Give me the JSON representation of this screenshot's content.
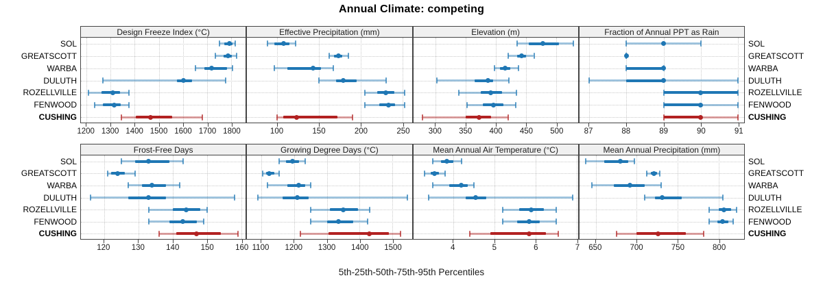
{
  "title": "Annual Climate: competing",
  "axis_caption": "5th-25th-50th-75th-95th Percentiles",
  "locations": [
    "SOL",
    "GREATSCOTT",
    "WARBA",
    "DULUTH",
    "ROZELLVILLE",
    "FENWOOD",
    "CUSHING"
  ],
  "highlight_location": "CUSHING",
  "percentile_labels": [
    "5th",
    "25th",
    "50th",
    "75th",
    "95th"
  ],
  "colors": {
    "series_main": "#1f77b4",
    "highlight_main": "#b22222",
    "grid": "#c9c9c9",
    "header_bg": "#f0f0f0",
    "panel_border": "#444444",
    "title_color": "#000000"
  },
  "layout": {
    "rows": 2,
    "cols": 4,
    "legend": "none",
    "grid": "dotted",
    "left_labels": true,
    "right_labels": true
  },
  "chart_data": {
    "type": "dot-interval (percentile summary, horizontal)",
    "title": "Annual Climate: competing",
    "xlabel": "5th-25th-50th-75th-95th Percentiles",
    "categories": [
      "SOL",
      "GREATSCOTT",
      "WARBA",
      "DULUTH",
      "ROZELLVILLE",
      "FENWOOD",
      "CUSHING"
    ],
    "percentiles": [
      5,
      25,
      50,
      75,
      95
    ],
    "panels": [
      {
        "row": 0,
        "col": 0,
        "title": "Design Freeze Index (°C)",
        "xlim": [
          1177,
          1860
        ],
        "ticks": [
          1200,
          1300,
          1400,
          1500,
          1600,
          1700,
          1800
        ],
        "values": [
          [
            1750,
            1772,
            1793,
            1806,
            1818
          ],
          [
            1733,
            1768,
            1787,
            1802,
            1823
          ],
          [
            1652,
            1688,
            1718,
            1783,
            1806
          ],
          [
            1268,
            1575,
            1603,
            1637,
            1778
          ],
          [
            1208,
            1262,
            1310,
            1340,
            1375
          ],
          [
            1235,
            1268,
            1315,
            1342,
            1375
          ],
          [
            1345,
            1405,
            1465,
            1555,
            1680
          ]
        ]
      },
      {
        "row": 0,
        "col": 1,
        "title": "Effective Precipitation (mm)",
        "xlim": [
          64,
          261
        ],
        "ticks": [
          100,
          150,
          200,
          250
        ],
        "values": [
          [
            88,
            97,
            108,
            115,
            122
          ],
          [
            162,
            168,
            173,
            178,
            185
          ],
          [
            97,
            112,
            143,
            152,
            167
          ],
          [
            150,
            170,
            179,
            195,
            230
          ],
          [
            205,
            220,
            230,
            240,
            252
          ],
          [
            205,
            222,
            233,
            241,
            252
          ],
          [
            100,
            107,
            123,
            172,
            190
          ]
        ]
      },
      {
        "row": 0,
        "col": 2,
        "title": "Elevation (m)",
        "xlim": [
          263,
          536
        ],
        "ticks": [
          300,
          350,
          400,
          450,
          500
        ],
        "values": [
          [
            435,
            455,
            478,
            505,
            528
          ],
          [
            420,
            435,
            443,
            450,
            463
          ],
          [
            398,
            407,
            415,
            424,
            437
          ],
          [
            302,
            365,
            387,
            395,
            421
          ],
          [
            338,
            375,
            391,
            410,
            434
          ],
          [
            352,
            378,
            396,
            412,
            433
          ],
          [
            278,
            350,
            372,
            392,
            420
          ]
        ]
      },
      {
        "row": 0,
        "col": 3,
        "title": "Fraction of Annual PPT as Rain",
        "xlim": [
          86.74,
          91.16
        ],
        "ticks": [
          87,
          88,
          89,
          90,
          91
        ],
        "values": [
          [
            88,
            89,
            89,
            89,
            90
          ],
          [
            88,
            88,
            88,
            88,
            88
          ],
          [
            88,
            88,
            89,
            89,
            89
          ],
          [
            87,
            88,
            89,
            89,
            91
          ],
          [
            89,
            89,
            90,
            91,
            91
          ],
          [
            89,
            89,
            90,
            90,
            91
          ],
          [
            89,
            89,
            90,
            90,
            91
          ]
        ]
      },
      {
        "row": 1,
        "col": 0,
        "title": "Frost-Free Days",
        "xlim": [
          113.3,
          161.3
        ],
        "ticks": [
          120,
          130,
          140,
          150,
          160
        ],
        "values": [
          [
            125,
            129,
            133,
            139,
            143
          ],
          [
            121,
            122,
            124,
            126,
            129
          ],
          [
            127,
            131,
            134,
            138,
            142
          ],
          [
            116,
            127,
            133,
            138,
            158
          ],
          [
            133,
            140,
            144,
            148,
            150
          ],
          [
            133,
            139,
            143,
            147,
            149
          ],
          [
            136,
            141,
            147,
            154,
            159
          ]
        ]
      },
      {
        "row": 1,
        "col": 1,
        "title": "Growing Degree Days (°C)",
        "xlim": [
          1057,
          1559
        ],
        "ticks": [
          1100,
          1200,
          1300,
          1400,
          1500
        ],
        "values": [
          [
            1155,
            1175,
            1195,
            1215,
            1235
          ],
          [
            1105,
            1115,
            1125,
            1140,
            1155
          ],
          [
            1120,
            1180,
            1215,
            1235,
            1250
          ],
          [
            1090,
            1165,
            1210,
            1245,
            1545
          ],
          [
            1250,
            1310,
            1350,
            1395,
            1430
          ],
          [
            1250,
            1300,
            1335,
            1380,
            1425
          ],
          [
            1220,
            1305,
            1430,
            1490,
            1525
          ]
        ]
      },
      {
        "row": 1,
        "col": 2,
        "title": "Mean Annual Air Temperature (°C)",
        "xlim": [
          3.03,
          7.03
        ],
        "ticks": [
          4,
          5,
          6,
          7
        ],
        "values": [
          [
            3.5,
            3.7,
            3.85,
            4.0,
            4.2
          ],
          [
            3.3,
            3.45,
            3.55,
            3.65,
            3.8
          ],
          [
            3.5,
            3.9,
            4.2,
            4.35,
            4.5
          ],
          [
            3.4,
            4.3,
            4.55,
            4.8,
            6.9
          ],
          [
            5.2,
            5.6,
            5.9,
            6.2,
            6.5
          ],
          [
            5.2,
            5.55,
            5.85,
            6.1,
            6.5
          ],
          [
            4.4,
            4.9,
            5.85,
            6.25,
            6.55
          ]
        ]
      },
      {
        "row": 1,
        "col": 3,
        "title": "Mean Annual Precipitation (mm)",
        "xlim": [
          630,
          831
        ],
        "ticks": [
          650,
          700,
          750,
          800
        ],
        "values": [
          [
            638,
            660,
            680,
            690,
            697
          ],
          [
            712,
            717,
            721,
            725,
            728
          ],
          [
            645,
            672,
            692,
            710,
            730
          ],
          [
            710,
            722,
            731,
            755,
            805
          ],
          [
            788,
            800,
            806,
            815,
            822
          ],
          [
            788,
            798,
            805,
            812,
            818
          ],
          [
            675,
            700,
            726,
            760,
            782
          ]
        ]
      }
    ]
  }
}
